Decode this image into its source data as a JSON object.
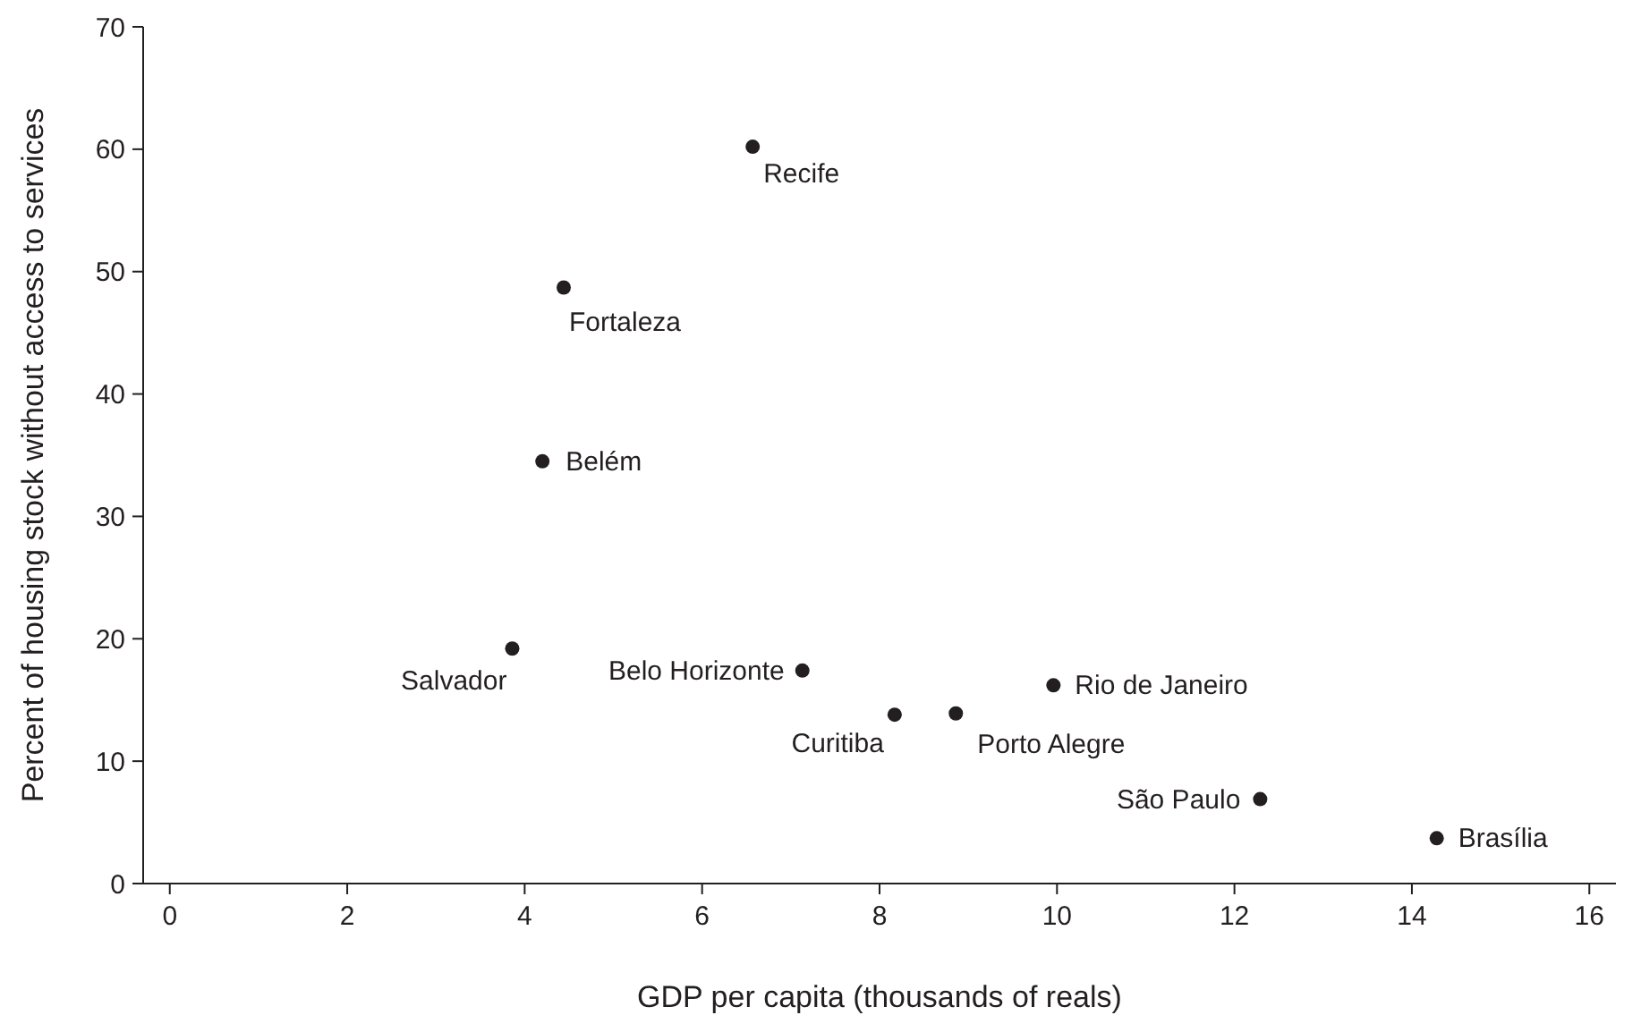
{
  "chart_data": {
    "type": "scatter",
    "xlabel": "GDP per capita (thousands of reals)",
    "ylabel": "Percent of housing stock without access to services",
    "marker": "circle",
    "grid": false,
    "series": [
      {
        "color": "#231f20",
        "x": [
          6.57,
          4.44,
          4.2,
          3.86,
          7.13,
          8.17,
          8.86,
          9.96,
          12.29,
          14.28
        ],
        "values": [
          60.2,
          48.7,
          34.5,
          19.2,
          17.4,
          13.8,
          13.9,
          16.2,
          6.9,
          3.7
        ]
      }
    ],
    "annotations": [
      {
        "text": "Recife",
        "x": 6.57,
        "y": 60.2
      },
      {
        "text": "Fortaleza",
        "x": 4.44,
        "y": 48.7
      },
      {
        "text": "Belém",
        "x": 4.2,
        "y": 34.5
      },
      {
        "text": "Salvador",
        "x": 3.86,
        "y": 19.2
      },
      {
        "text": "Belo Horizonte",
        "x": 7.13,
        "y": 17.4
      },
      {
        "text": "Curitiba",
        "x": 8.17,
        "y": 13.8
      },
      {
        "text": "Porto Alegre",
        "x": 8.86,
        "y": 13.9
      },
      {
        "text": "Rio de Janeiro",
        "x": 9.96,
        "y": 16.2
      },
      {
        "text": "São Paulo",
        "x": 12.29,
        "y": 6.9
      },
      {
        "text": "Brasília",
        "x": 14.28,
        "y": 3.7
      }
    ],
    "xlim": [
      -0.3,
      16.3
    ],
    "xticks": [
      0,
      2,
      4,
      6,
      8,
      10,
      12,
      14,
      16
    ],
    "ylim": [
      0,
      70
    ],
    "yticks": [
      0,
      10,
      20,
      30,
      40,
      50,
      60,
      70
    ]
  }
}
